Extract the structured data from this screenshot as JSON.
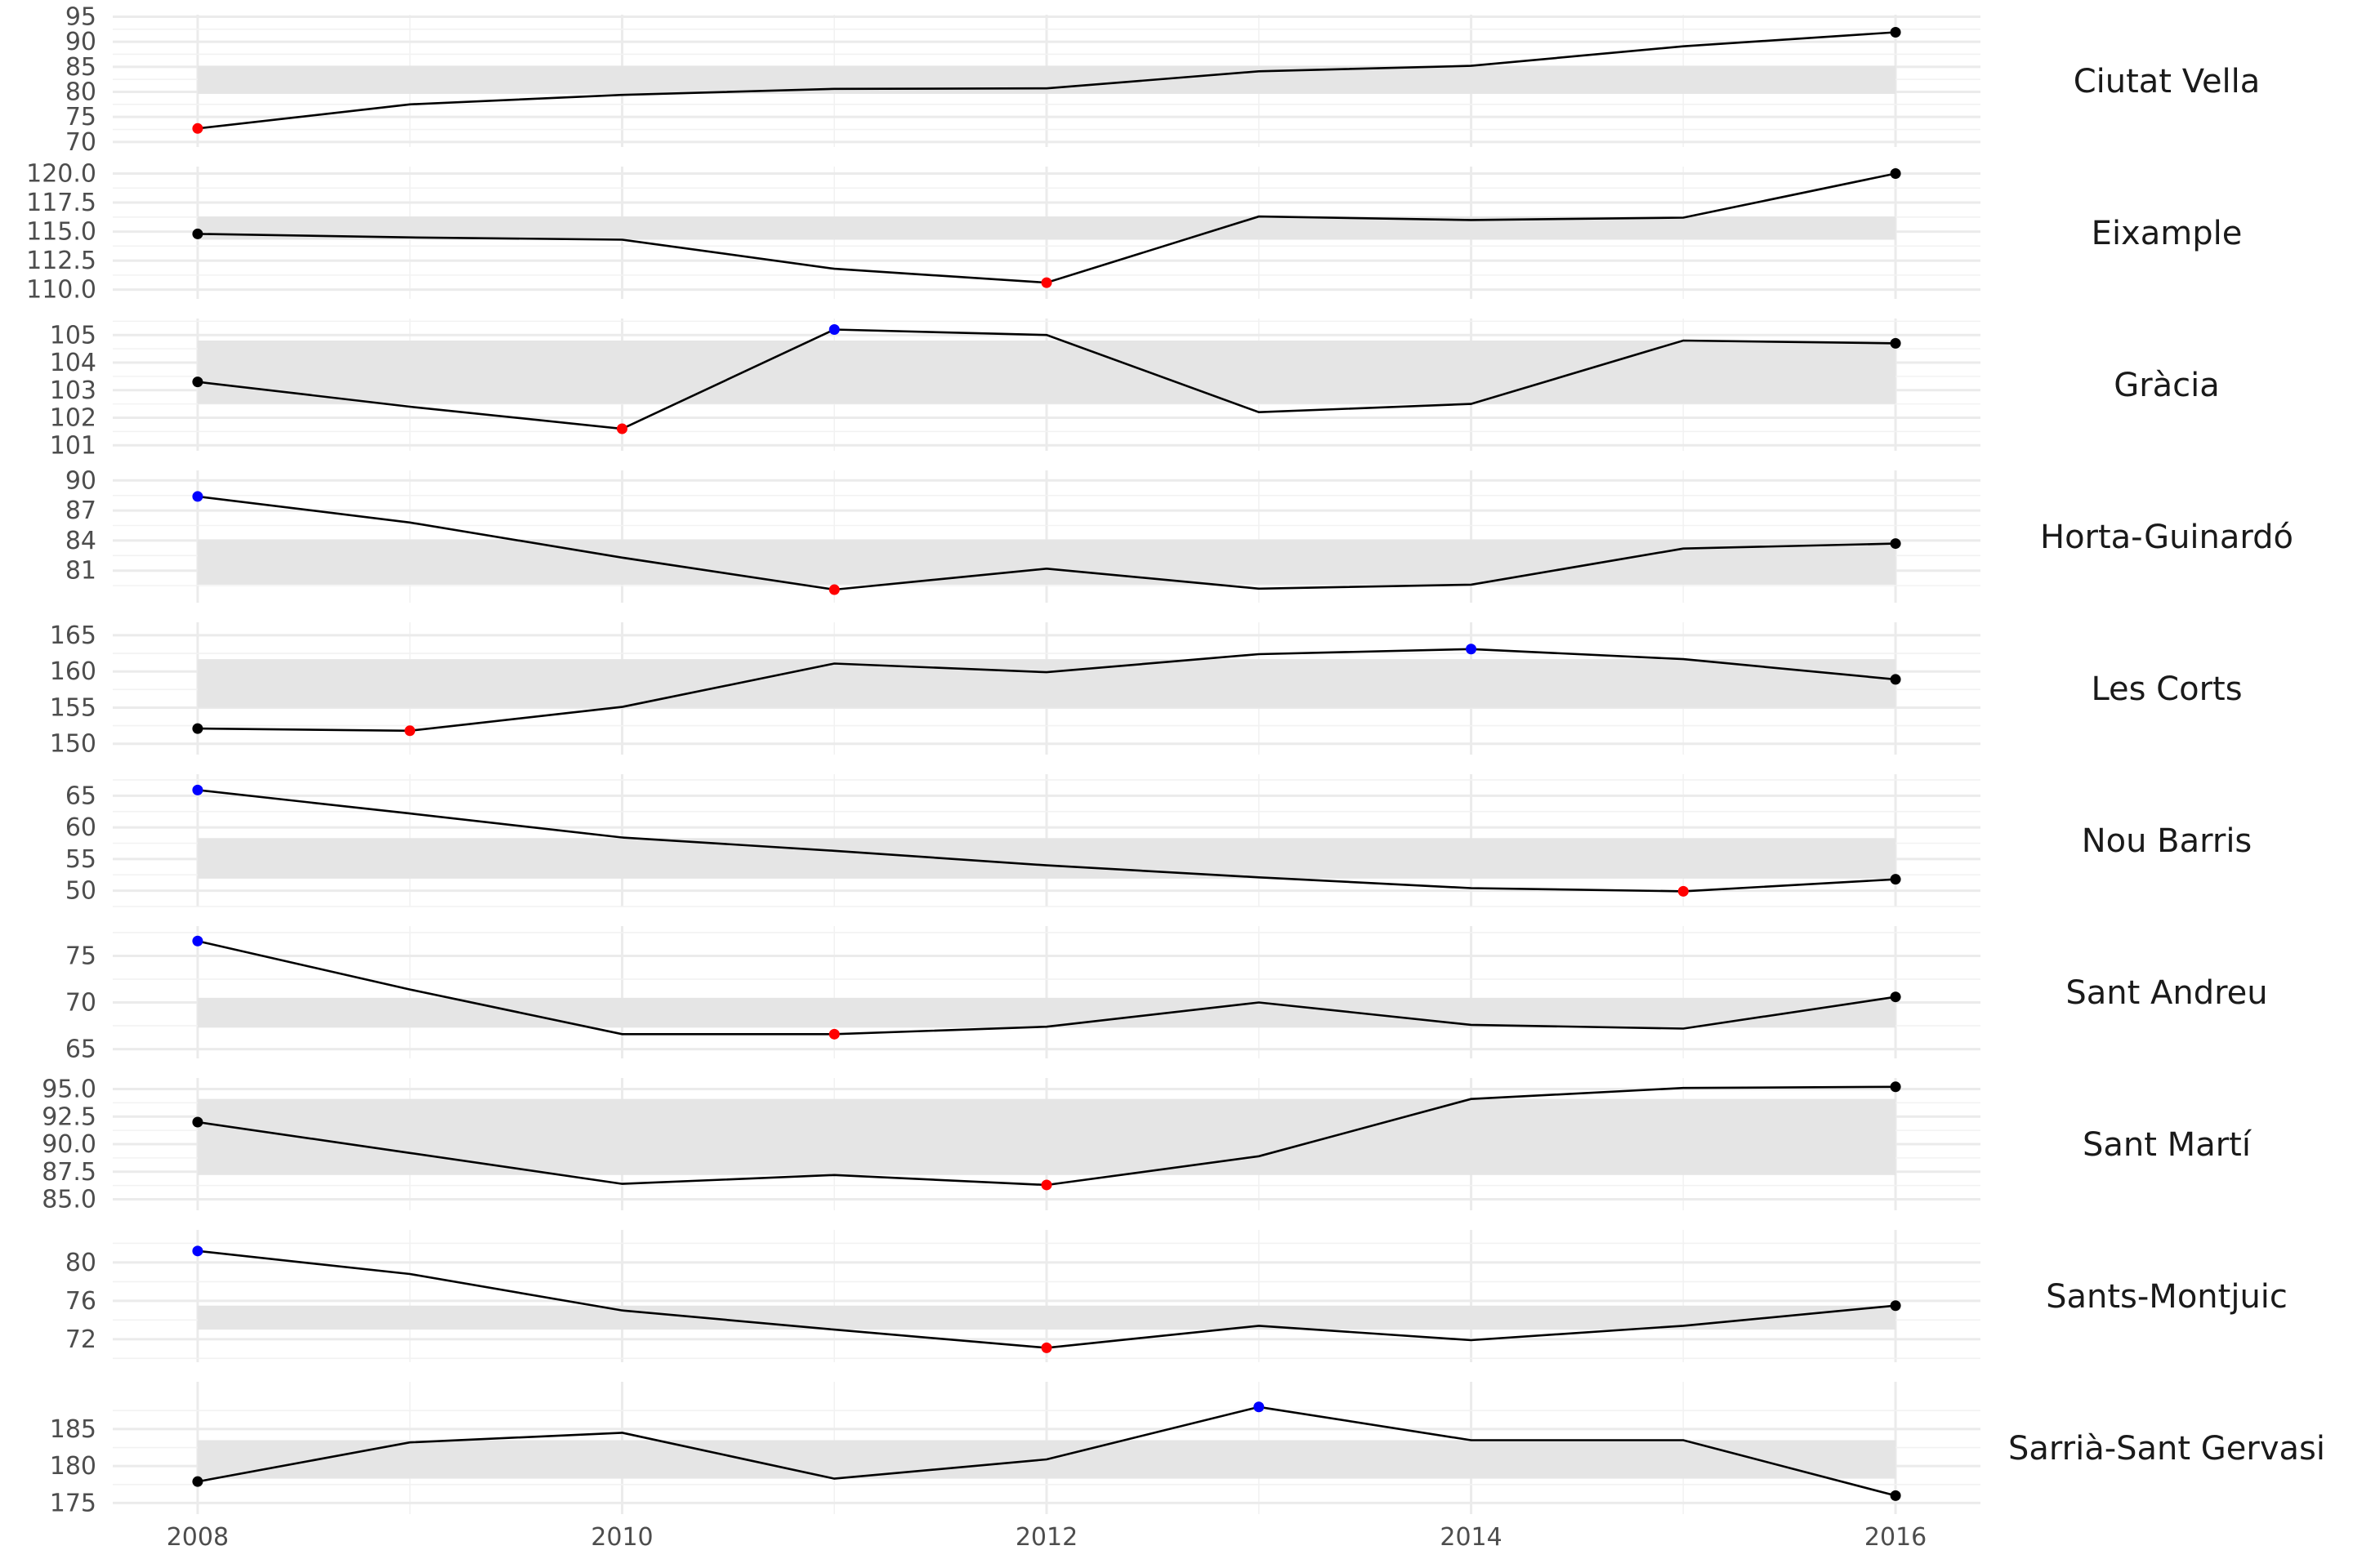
{
  "chart_data": {
    "type": "line",
    "x_ticks": [
      2008,
      2010,
      2012,
      2014,
      2016
    ],
    "xlim": [
      2007.6,
      2016.4
    ],
    "x": [
      2008,
      2009,
      2010,
      2011,
      2012,
      2013,
      2014,
      2015,
      2016
    ],
    "colors": {
      "line": "#000000",
      "normal_point": "#000000",
      "min_point": "#ff0000",
      "max_point": "#0000ff",
      "band": "#e5e5e5",
      "grid": "#ebebeb"
    },
    "facets": [
      {
        "name": "Ciutat Vella",
        "values": [
          72.7,
          77.5,
          79.4,
          80.6,
          80.7,
          84.1,
          85.2,
          89.1,
          91.9
        ],
        "band": [
          79.6,
          85.2
        ],
        "ylim": [
          69,
          95.4
        ],
        "yticks": [
          "70",
          "75",
          "80",
          "85",
          "90",
          "95"
        ],
        "min_index": 0,
        "max_index": null
      },
      {
        "name": "Eixample",
        "values": [
          114.8,
          114.5,
          114.3,
          111.8,
          110.6,
          116.3,
          116.0,
          116.2,
          120.0
        ],
        "band": [
          114.3,
          116.3
        ],
        "ylim": [
          109.2,
          120.6
        ],
        "yticks": [
          "110.0",
          "112.5",
          "115.0",
          "117.5",
          "120.0"
        ],
        "min_index": 4,
        "max_index": null
      },
      {
        "name": "Gràcia",
        "values": [
          103.3,
          102.4,
          101.6,
          105.2,
          105.0,
          102.2,
          102.5,
          104.8,
          104.7
        ],
        "band": [
          102.5,
          104.8
        ],
        "ylim": [
          100.8,
          105.6
        ],
        "yticks": [
          "101",
          "102",
          "103",
          "104",
          "105"
        ],
        "min_index": 2,
        "max_index": 3
      },
      {
        "name": "Horta-Guinardó",
        "values": [
          88.4,
          85.8,
          82.3,
          79.1,
          81.2,
          79.2,
          79.6,
          83.2,
          83.7
        ],
        "band": [
          79.6,
          84.1
        ],
        "ylim": [
          77.8,
          91.0
        ],
        "yticks": [
          "81",
          "84",
          "87",
          "90"
        ],
        "min_index": 3,
        "max_index": 0
      },
      {
        "name": "Les Corts",
        "values": [
          152.1,
          151.8,
          155.1,
          161.1,
          159.9,
          162.4,
          163.1,
          161.7,
          158.9
        ],
        "band": [
          155.0,
          161.7
        ],
        "ylim": [
          148.5,
          166.8
        ],
        "yticks": [
          "150",
          "155",
          "160",
          "165"
        ],
        "min_index": 1,
        "max_index": 6
      },
      {
        "name": "Nou Barris",
        "values": [
          65.9,
          62.2,
          58.4,
          56.3,
          54.0,
          52.1,
          50.4,
          49.9,
          51.8
        ],
        "band": [
          51.9,
          58.3
        ],
        "ylim": [
          47.5,
          68.4
        ],
        "yticks": [
          "50",
          "55",
          "60",
          "65"
        ],
        "min_index": 7,
        "max_index": 0
      },
      {
        "name": "Sant Andreu",
        "values": [
          76.6,
          71.4,
          66.6,
          66.6,
          67.4,
          70.0,
          67.6,
          67.2,
          70.6
        ],
        "band": [
          67.3,
          70.5
        ],
        "ylim": [
          64.0,
          78.2
        ],
        "yticks": [
          "65",
          "70",
          "75"
        ],
        "min_index": 3,
        "max_index": 0
      },
      {
        "name": "Sant Martí",
        "values": [
          92.0,
          89.2,
          86.4,
          87.2,
          86.3,
          88.9,
          94.1,
          95.1,
          95.2
        ],
        "band": [
          87.2,
          94.1
        ],
        "ylim": [
          84.0,
          96.0
        ],
        "yticks": [
          "85.0",
          "87.5",
          "90.0",
          "92.5",
          "95.0"
        ],
        "min_index": 4,
        "max_index": null
      },
      {
        "name": "Sants-Montjuic",
        "values": [
          81.2,
          78.8,
          75.0,
          73.0,
          71.1,
          73.4,
          71.9,
          73.4,
          75.5
        ],
        "band": [
          73.0,
          75.5
        ],
        "ylim": [
          69.6,
          83.4
        ],
        "yticks": [
          "72",
          "76",
          "80"
        ],
        "min_index": 4,
        "max_index": 0
      },
      {
        "name": "Sarrià-Sant Gervasi",
        "values": [
          177.9,
          183.2,
          184.5,
          178.3,
          180.9,
          188.0,
          183.5,
          183.5,
          176.0
        ],
        "band": [
          178.3,
          183.5
        ],
        "ylim": [
          173.5,
          191.4
        ],
        "yticks": [
          "175",
          "180",
          "185"
        ],
        "min_index": null,
        "max_index": 5
      }
    ]
  }
}
